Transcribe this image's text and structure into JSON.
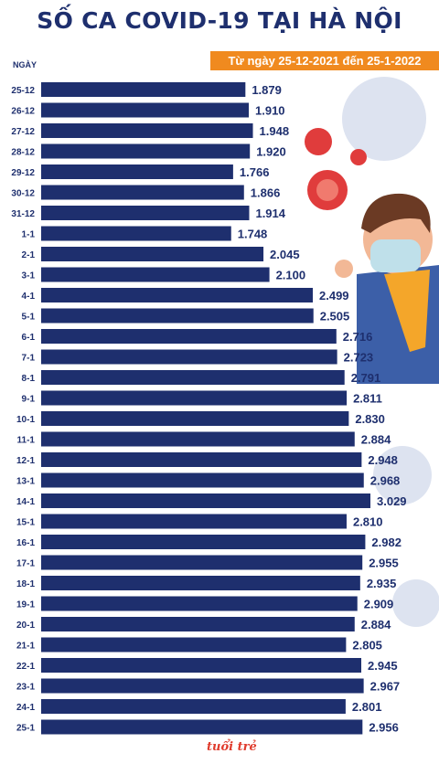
{
  "title": "SỐ CA COVID-19 TẠI HÀ NỘI",
  "subtitle": "Từ ngày 25-12-2021 đến 25-1-2022",
  "axis_heading": "NGÀY",
  "watermark": "tuổi trẻ",
  "colors": {
    "bar": "#1e2f6e",
    "label": "#1e2f6e",
    "title": "#1e2f6e",
    "accent": "#f08a1f",
    "virus": "#e03c3c"
  },
  "chart_data": {
    "type": "bar",
    "orientation": "horizontal",
    "title": "SỐ CA COVID-19 TẠI HÀ NỘI",
    "subtitle": "Từ ngày 25-12-2021 đến 25-1-2022",
    "ylabel": "NGÀY",
    "categories": [
      "25-12",
      "26-12",
      "27-12",
      "28-12",
      "29-12",
      "30-12",
      "31-12",
      "1-1",
      "2-1",
      "3-1",
      "4-1",
      "5-1",
      "6-1",
      "7-1",
      "8-1",
      "9-1",
      "10-1",
      "11-1",
      "12-1",
      "13-1",
      "14-1",
      "15-1",
      "16-1",
      "17-1",
      "18-1",
      "19-1",
      "20-1",
      "21-1",
      "22-1",
      "23-1",
      "24-1",
      "25-1"
    ],
    "values": [
      1879,
      1910,
      1948,
      1920,
      1766,
      1866,
      1914,
      1748,
      2045,
      2100,
      2499,
      2505,
      2716,
      2723,
      2791,
      2811,
      2830,
      2884,
      2948,
      2968,
      3029,
      2810,
      2982,
      2955,
      2935,
      2909,
      2884,
      2805,
      2945,
      2967,
      2801,
      2956
    ],
    "value_labels": [
      "1.879",
      "1.910",
      "1.948",
      "1.920",
      "1.766",
      "1.866",
      "1.914",
      "1.748",
      "2.045",
      "2.100",
      "2.499",
      "2.505",
      "2.716",
      "2.723",
      "2.791",
      "2.811",
      "2.830",
      "2.884",
      "2.948",
      "2.968",
      "3.029",
      "2.810",
      "2.982",
      "2.955",
      "2.935",
      "2.909",
      "2.884",
      "2.805",
      "2.945",
      "2.967",
      "2.801",
      "2.956"
    ],
    "xlim": [
      0,
      3029
    ],
    "grid": false,
    "legend": "none"
  }
}
